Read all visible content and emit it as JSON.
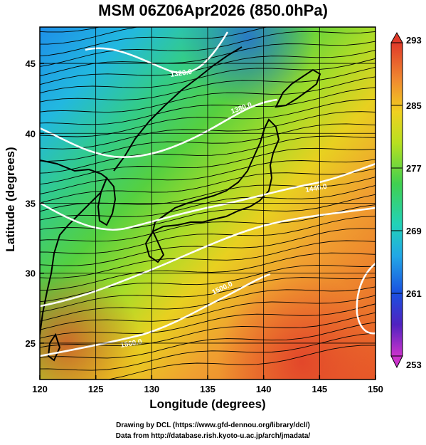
{
  "title": "MSM 06Z06Apr2026 (850.0hPa)",
  "axes": {
    "xlabel": "Longitude (degrees)",
    "ylabel": "Latitude  (degrees)",
    "xticks": [
      "120",
      "125",
      "130",
      "135",
      "140",
      "145",
      "150"
    ],
    "yticks": [
      "25",
      "30",
      "35",
      "40",
      "45"
    ],
    "xrange": [
      120,
      150
    ],
    "yrange": [
      22.4,
      47.6
    ],
    "grid": true
  },
  "colorbar": {
    "labels": [
      "293",
      "285",
      "277",
      "269",
      "261",
      "253"
    ],
    "range": [
      253,
      293
    ],
    "colors": [
      "#cc33cc",
      "#3333cc",
      "#1a66e6",
      "#22c8e6",
      "#22d27a",
      "#55d040",
      "#b8e020",
      "#f0d020",
      "#f08a30",
      "#e03a2a"
    ]
  },
  "contour_labels": [
    "1320.0",
    "1380.0",
    "1440.0",
    "1500.0",
    "1560.0"
  ],
  "credits": {
    "line1": "Drawing by DCL (https://www.gfd-dennou.org/library/dcl/)",
    "line2": "Data from http://database.rish.kyoto-u.ac.jp/arch/jmadata/"
  },
  "colors": {
    "contour": "#ffffff",
    "streamline": "#000000",
    "coast": "#000000"
  }
}
